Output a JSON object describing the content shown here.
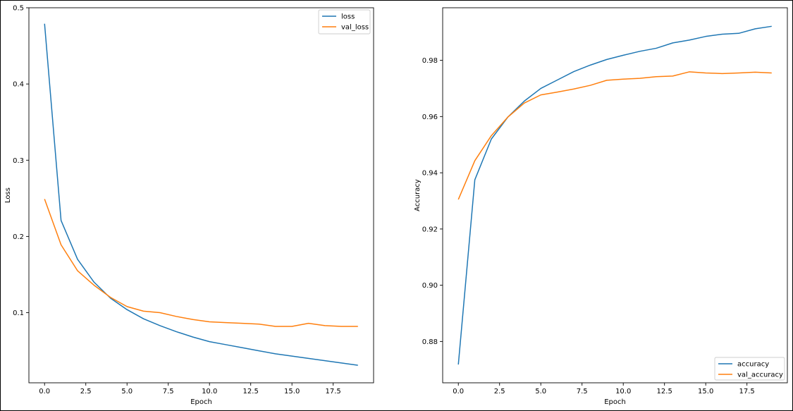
{
  "chart_data": [
    {
      "type": "line",
      "title": "",
      "xlabel": "Epoch",
      "ylabel": "Loss",
      "xlim": [
        -0.95,
        19.95
      ],
      "ylim": [
        0.008,
        0.5
      ],
      "xticks": [
        0.0,
        2.5,
        5.0,
        7.5,
        10.0,
        12.5,
        15.0,
        17.5
      ],
      "xtick_labels": [
        "0.0",
        "2.5",
        "5.0",
        "7.5",
        "10.0",
        "12.5",
        "15.0",
        "17.5"
      ],
      "yticks": [
        0.1,
        0.2,
        0.3,
        0.4,
        0.5
      ],
      "ytick_labels": [
        "0.1",
        "0.2",
        "0.3",
        "0.4",
        "0.5"
      ],
      "legend_position": "top-right",
      "grid": false,
      "x": [
        0,
        1,
        2,
        3,
        4,
        5,
        6,
        7,
        8,
        9,
        10,
        11,
        12,
        13,
        14,
        15,
        16,
        17,
        18,
        19
      ],
      "series": [
        {
          "name": "loss",
          "color": "#1f77b4",
          "values": [
            0.479,
            0.221,
            0.17,
            0.14,
            0.119,
            0.104,
            0.092,
            0.083,
            0.075,
            0.068,
            0.062,
            0.058,
            0.054,
            0.05,
            0.046,
            0.043,
            0.04,
            0.037,
            0.034,
            0.031
          ]
        },
        {
          "name": "val_loss",
          "color": "#ff7f0e",
          "values": [
            0.249,
            0.189,
            0.155,
            0.136,
            0.12,
            0.108,
            0.102,
            0.1,
            0.095,
            0.091,
            0.088,
            0.087,
            0.086,
            0.085,
            0.082,
            0.082,
            0.086,
            0.083,
            0.082,
            0.082
          ]
        }
      ]
    },
    {
      "type": "line",
      "title": "",
      "xlabel": "Epoch",
      "ylabel": "Accuracy",
      "xlim": [
        -0.95,
        19.95
      ],
      "ylim": [
        0.8653,
        0.9987
      ],
      "xticks": [
        0.0,
        2.5,
        5.0,
        7.5,
        10.0,
        12.5,
        15.0,
        17.5
      ],
      "xtick_labels": [
        "0.0",
        "2.5",
        "5.0",
        "7.5",
        "10.0",
        "12.5",
        "15.0",
        "17.5"
      ],
      "yticks": [
        0.88,
        0.9,
        0.92,
        0.94,
        0.96,
        0.98
      ],
      "ytick_labels": [
        "0.88",
        "0.90",
        "0.92",
        "0.94",
        "0.96",
        "0.98"
      ],
      "legend_position": "bottom-right",
      "grid": false,
      "x": [
        0,
        1,
        2,
        3,
        4,
        5,
        6,
        7,
        8,
        9,
        10,
        11,
        12,
        13,
        14,
        15,
        16,
        17,
        18,
        19
      ],
      "series": [
        {
          "name": "accuracy",
          "color": "#1f77b4",
          "values": [
            0.8718,
            0.9375,
            0.952,
            0.9598,
            0.9655,
            0.97,
            0.973,
            0.976,
            0.9783,
            0.9803,
            0.9818,
            0.9832,
            0.9843,
            0.9862,
            0.9872,
            0.9885,
            0.9893,
            0.9896,
            0.9912,
            0.9921
          ]
        },
        {
          "name": "val_accuracy",
          "color": "#ff7f0e",
          "values": [
            0.9305,
            0.9443,
            0.9532,
            0.9598,
            0.9648,
            0.9677,
            0.9687,
            0.9698,
            0.9711,
            0.9729,
            0.9733,
            0.9736,
            0.9742,
            0.9744,
            0.9759,
            0.9755,
            0.9753,
            0.9755,
            0.9758,
            0.9755
          ]
        }
      ]
    }
  ]
}
